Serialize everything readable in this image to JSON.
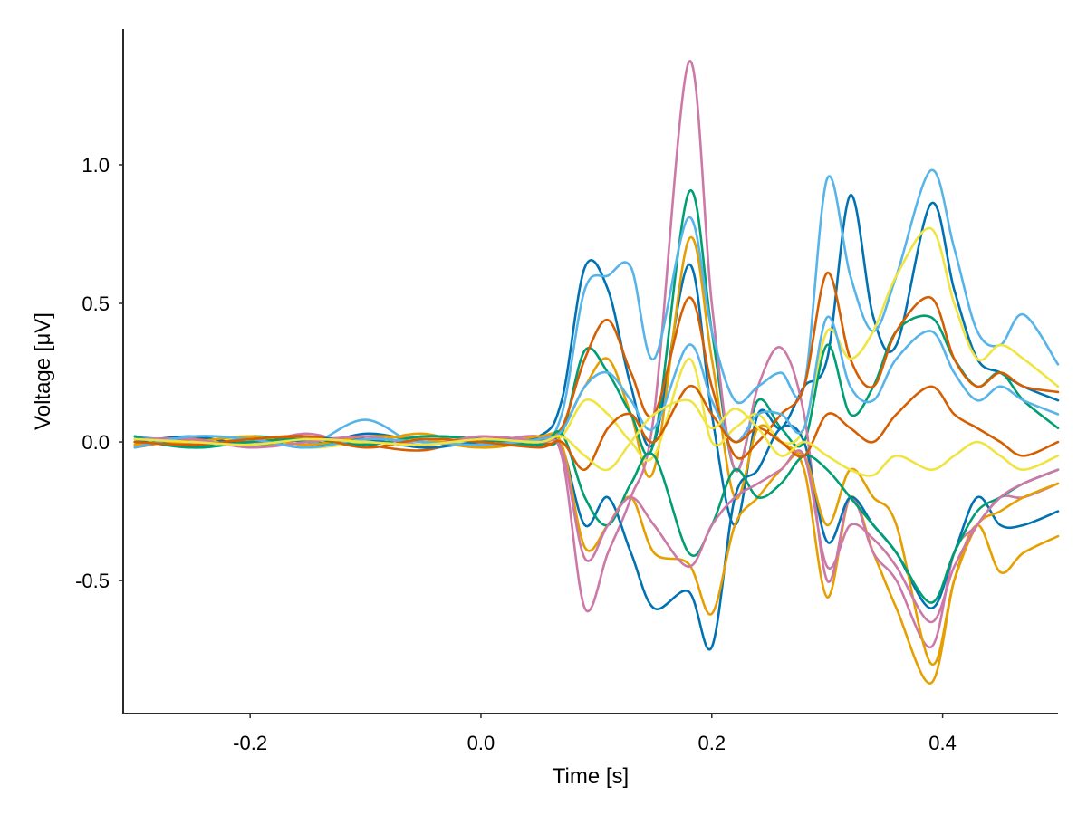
{
  "chart_data": {
    "type": "line",
    "title": "",
    "xlabel": "Time [s]",
    "ylabel": "Voltage [μV]",
    "xlim": [
      -0.31,
      0.5
    ],
    "ylim": [
      -0.98,
      1.49
    ],
    "x_ticks": [
      -0.2,
      0.0,
      0.2,
      0.4
    ],
    "x_tick_labels": [
      "-0.2",
      "0.0",
      "0.2",
      "0.4"
    ],
    "y_ticks": [
      -0.5,
      0.0,
      0.5,
      1.0
    ],
    "y_tick_labels": [
      "-0.5",
      "0.0",
      "0.5",
      "1.0"
    ],
    "grid": false,
    "legend": "none",
    "series_colors": [
      "#0072B2",
      "#E69F00",
      "#009E73",
      "#CC79A7",
      "#56B4E9",
      "#D55E00",
      "#F0E442"
    ],
    "x": [
      -0.3,
      -0.25,
      -0.2,
      -0.15,
      -0.1,
      -0.05,
      0.0,
      0.05,
      0.07,
      0.09,
      0.11,
      0.13,
      0.15,
      0.18,
      0.2,
      0.22,
      0.24,
      0.26,
      0.28,
      0.3,
      0.32,
      0.34,
      0.36,
      0.39,
      0.41,
      0.43,
      0.45,
      0.47,
      0.5
    ],
    "series": [
      {
        "values": [
          0.02,
          -0.01,
          0.01,
          -0.02,
          0.03,
          0.0,
          -0.01,
          0.02,
          0.15,
          0.63,
          0.55,
          0.2,
          0.0,
          0.64,
          0.1,
          -0.3,
          0.1,
          0.05,
          0.2,
          0.3,
          0.89,
          0.45,
          0.35,
          0.86,
          0.55,
          0.3,
          0.25,
          0.2,
          0.15
        ]
      },
      {
        "values": [
          -0.01,
          0.02,
          -0.02,
          0.01,
          0.0,
          0.03,
          -0.02,
          0.01,
          0.05,
          0.2,
          0.3,
          0.1,
          -0.1,
          0.73,
          0.3,
          -0.2,
          0.05,
          0.0,
          -0.1,
          -0.56,
          -0.2,
          -0.4,
          -0.6,
          -0.87,
          -0.5,
          -0.3,
          -0.47,
          -0.4,
          -0.34
        ]
      },
      {
        "values": [
          0.01,
          -0.02,
          0.02,
          0.0,
          -0.01,
          0.02,
          0.01,
          -0.01,
          0.03,
          0.33,
          0.25,
          0.1,
          0.0,
          0.9,
          0.4,
          -0.1,
          0.15,
          0.05,
          0.0,
          0.35,
          0.1,
          0.2,
          0.4,
          0.45,
          0.3,
          0.2,
          0.25,
          0.15,
          0.05
        ]
      },
      {
        "values": [
          0.0,
          0.01,
          -0.01,
          0.03,
          -0.02,
          0.01,
          0.0,
          0.02,
          -0.05,
          -0.6,
          -0.4,
          -0.2,
          0.1,
          1.37,
          0.5,
          -0.1,
          0.2,
          0.34,
          0.1,
          -0.5,
          -0.2,
          -0.4,
          -0.5,
          -0.74,
          -0.4,
          -0.3,
          -0.2,
          -0.2,
          -0.15
        ]
      },
      {
        "values": [
          0.02,
          0.0,
          0.01,
          -0.01,
          0.08,
          -0.02,
          0.01,
          0.0,
          0.1,
          0.55,
          0.6,
          0.63,
          0.3,
          0.81,
          0.4,
          0.15,
          0.2,
          0.25,
          0.2,
          0.95,
          0.6,
          0.4,
          0.6,
          0.98,
          0.7,
          0.4,
          0.35,
          0.46,
          0.28
        ]
      },
      {
        "values": [
          -0.02,
          0.01,
          0.0,
          0.02,
          -0.01,
          -0.03,
          0.02,
          -0.01,
          0.05,
          0.3,
          0.44,
          0.25,
          0.1,
          0.52,
          0.2,
          -0.05,
          0.0,
          0.1,
          0.2,
          0.61,
          0.3,
          0.2,
          0.4,
          0.52,
          0.3,
          0.2,
          0.25,
          0.2,
          0.18
        ]
      },
      {
        "values": [
          0.01,
          -0.01,
          0.02,
          -0.02,
          0.0,
          0.01,
          -0.01,
          0.0,
          0.02,
          0.15,
          0.1,
          0.0,
          -0.05,
          0.3,
          0.0,
          0.05,
          0.1,
          0.0,
          0.05,
          0.4,
          0.3,
          0.4,
          0.6,
          0.77,
          0.5,
          0.3,
          0.35,
          0.3,
          0.2
        ]
      },
      {
        "values": [
          0.0,
          0.02,
          -0.01,
          0.01,
          0.01,
          -0.02,
          0.0,
          0.01,
          -0.02,
          -0.3,
          -0.2,
          -0.4,
          -0.6,
          -0.54,
          -0.74,
          -0.2,
          -0.1,
          0.05,
          0.0,
          -0.36,
          -0.2,
          -0.3,
          -0.4,
          -0.6,
          -0.4,
          -0.2,
          -0.3,
          -0.3,
          -0.25
        ]
      },
      {
        "values": [
          -0.01,
          0.0,
          0.02,
          -0.01,
          0.02,
          0.01,
          -0.02,
          0.02,
          -0.01,
          -0.38,
          -0.3,
          -0.2,
          -0.4,
          -0.44,
          -0.62,
          -0.3,
          -0.2,
          -0.1,
          -0.05,
          -0.3,
          -0.1,
          -0.2,
          -0.3,
          -0.8,
          -0.5,
          -0.3,
          -0.25,
          -0.2,
          -0.15
        ]
      },
      {
        "values": [
          0.02,
          -0.02,
          0.0,
          0.01,
          -0.01,
          0.02,
          0.01,
          -0.01,
          0.03,
          -0.2,
          -0.3,
          -0.15,
          -0.05,
          -0.4,
          -0.3,
          -0.1,
          -0.2,
          -0.15,
          -0.05,
          -0.1,
          -0.2,
          -0.3,
          -0.4,
          -0.58,
          -0.4,
          -0.25,
          -0.2,
          -0.15,
          -0.1
        ]
      },
      {
        "values": [
          0.01,
          0.01,
          -0.02,
          0.0,
          0.02,
          -0.01,
          0.02,
          0.0,
          -0.03,
          -0.42,
          -0.3,
          -0.2,
          -0.3,
          -0.45,
          -0.3,
          -0.2,
          -0.15,
          -0.1,
          -0.05,
          -0.45,
          -0.3,
          -0.35,
          -0.45,
          -0.65,
          -0.45,
          -0.3,
          -0.2,
          -0.15,
          -0.1
        ]
      },
      {
        "values": [
          -0.02,
          0.02,
          0.01,
          -0.02,
          0.01,
          0.0,
          -0.01,
          0.01,
          0.04,
          0.2,
          0.25,
          0.15,
          0.05,
          0.35,
          0.15,
          0.0,
          0.1,
          0.1,
          0.05,
          0.45,
          0.2,
          0.15,
          0.3,
          0.4,
          0.25,
          0.15,
          0.2,
          0.15,
          0.1
        ]
      },
      {
        "values": [
          0.0,
          -0.01,
          0.01,
          0.02,
          -0.02,
          0.01,
          0.0,
          -0.02,
          0.0,
          -0.1,
          0.05,
          0.1,
          0.0,
          0.2,
          0.1,
          0.0,
          0.05,
          0.0,
          -0.05,
          0.1,
          0.05,
          0.0,
          0.1,
          0.2,
          0.1,
          0.05,
          0.0,
          -0.05,
          0.0
        ]
      },
      {
        "values": [
          0.01,
          0.0,
          -0.01,
          0.01,
          0.0,
          -0.01,
          0.01,
          0.0,
          0.02,
          -0.05,
          -0.1,
          0.0,
          0.1,
          0.15,
          0.05,
          0.12,
          0.05,
          -0.05,
          0.0,
          -0.05,
          -0.1,
          -0.12,
          -0.05,
          -0.1,
          -0.05,
          0.0,
          -0.05,
          -0.1,
          -0.05
        ]
      }
    ]
  }
}
